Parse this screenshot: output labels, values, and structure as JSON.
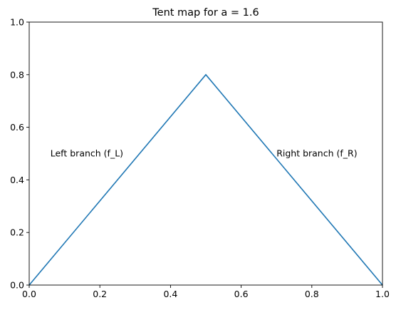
{
  "chart_data": {
    "type": "line",
    "title": "Tent map for a = 1.6",
    "xlabel": "",
    "ylabel": "",
    "xlim": [
      0.0,
      1.0
    ],
    "ylim": [
      0.0,
      1.0
    ],
    "xticks": [
      0.0,
      0.2,
      0.4,
      0.6,
      0.8,
      1.0
    ],
    "yticks": [
      0.0,
      0.2,
      0.4,
      0.6,
      0.8,
      1.0
    ],
    "xtick_labels": [
      "0.0",
      "0.2",
      "0.4",
      "0.6",
      "0.8",
      "1.0"
    ],
    "ytick_labels": [
      "0.0",
      "0.2",
      "0.4",
      "0.6",
      "0.8",
      "1.0"
    ],
    "grid": false,
    "series": [
      {
        "color": "#1f77b4",
        "x": [
          0.0,
          0.5,
          1.0
        ],
        "y": [
          0.0,
          0.8,
          0.0
        ]
      }
    ],
    "annotations": [
      {
        "text": "Left branch (f_L)",
        "x": 0.06,
        "y": 0.5
      },
      {
        "text": "Right branch (f_R)",
        "x": 0.7,
        "y": 0.5
      }
    ]
  }
}
